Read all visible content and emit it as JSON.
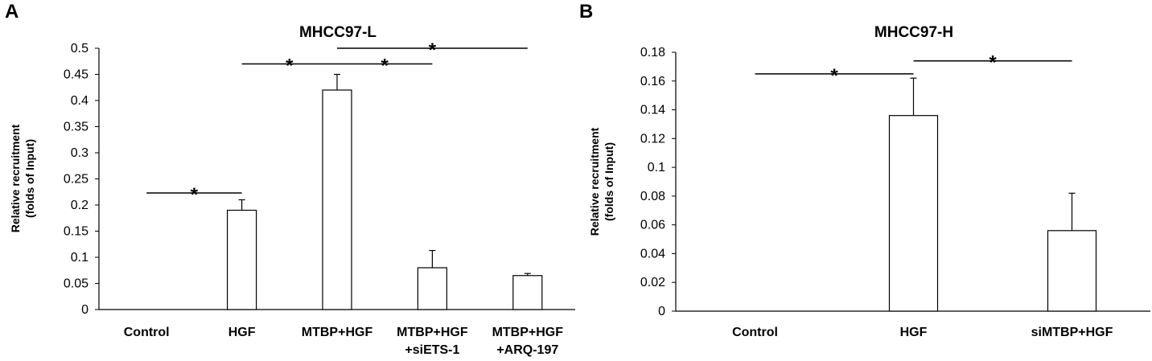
{
  "panel_labels": [
    "A",
    "B"
  ],
  "chart_data": [
    {
      "type": "bar",
      "panel": "A",
      "title": "MHCC97-L",
      "ylabel_lines": [
        "Relative recruitment",
        "(folds of Input)"
      ],
      "categories": [
        [
          "Control"
        ],
        [
          "HGF"
        ],
        [
          "MTBP+HGF"
        ],
        [
          "MTBP+HGF",
          "+siETS-1"
        ],
        [
          "MTBP+HGF",
          "+ARQ-197"
        ]
      ],
      "values": [
        0,
        0.19,
        0.42,
        0.08,
        0.065
      ],
      "errors": [
        0,
        0.02,
        0.03,
        0.033,
        0.004
      ],
      "ylim": [
        0,
        0.5
      ],
      "yticks": [
        "0",
        "0.05",
        "0.1",
        "0.15",
        "0.2",
        "0.25",
        "0.3",
        "0.35",
        "0.4",
        "0.45",
        "0.5"
      ],
      "ytick_values": [
        0,
        0.05,
        0.1,
        0.15,
        0.2,
        0.25,
        0.3,
        0.35,
        0.4,
        0.45,
        0.5
      ],
      "bar_fill": "#ffffff",
      "bar_stroke": "#000000",
      "grid": false,
      "significance": [
        {
          "from": 0,
          "to": 1,
          "y": 0.223,
          "label": "*"
        },
        {
          "from": 1,
          "to": 2,
          "y": 0.47,
          "label": "*"
        },
        {
          "from": 2,
          "to": 3,
          "y": 0.47,
          "label": "*"
        },
        {
          "from": 2,
          "to": 4,
          "y": 0.5,
          "label": "*"
        }
      ]
    },
    {
      "type": "bar",
      "panel": "B",
      "title": "MHCC97-H",
      "ylabel_lines": [
        "Relative recruitment",
        "(folds of Input)"
      ],
      "categories": [
        [
          "Control"
        ],
        [
          "HGF"
        ],
        [
          "siMTBP+HGF"
        ]
      ],
      "values": [
        0,
        0.136,
        0.056
      ],
      "errors": [
        0,
        0.026,
        0.026
      ],
      "ylim": [
        0,
        0.18
      ],
      "yticks": [
        "0",
        "0.02",
        "0.04",
        "0.06",
        "0.08",
        "0.1",
        "0.12",
        "0.14",
        "0.16",
        "0.18"
      ],
      "ytick_values": [
        0,
        0.02,
        0.04,
        0.06,
        0.08,
        0.1,
        0.12,
        0.14,
        0.16,
        0.18
      ],
      "bar_fill": "#ffffff",
      "bar_stroke": "#000000",
      "grid": false,
      "significance": [
        {
          "from": 0,
          "to": 1,
          "y": 0.165,
          "label": "*"
        },
        {
          "from": 1,
          "to": 2,
          "y": 0.174,
          "label": "*"
        }
      ]
    }
  ]
}
